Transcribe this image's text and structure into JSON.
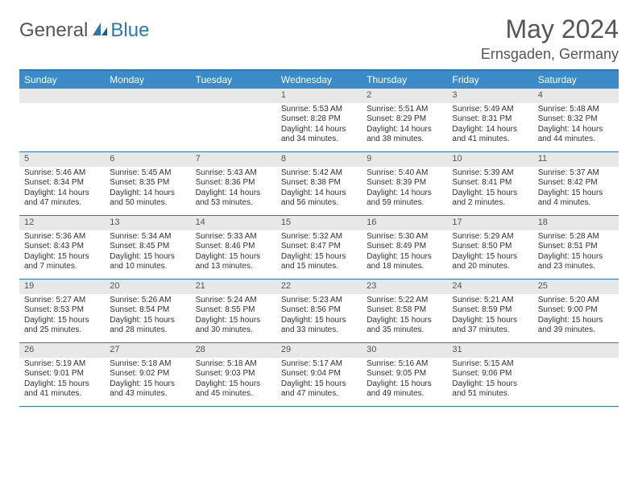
{
  "logo": {
    "general": "General",
    "blue": "Blue"
  },
  "title": "May 2024",
  "location": "Ernsgaden, Germany",
  "colors": {
    "header_bg": "#3b8bc9",
    "border": "#2a77b8",
    "daynum_bg": "#e8e8e8",
    "text": "#333333"
  },
  "weekdays": [
    "Sunday",
    "Monday",
    "Tuesday",
    "Wednesday",
    "Thursday",
    "Friday",
    "Saturday"
  ],
  "weeks": [
    [
      null,
      null,
      null,
      {
        "n": "1",
        "sr": "Sunrise: 5:53 AM",
        "ss": "Sunset: 8:28 PM",
        "dl": "Daylight: 14 hours and 34 minutes."
      },
      {
        "n": "2",
        "sr": "Sunrise: 5:51 AM",
        "ss": "Sunset: 8:29 PM",
        "dl": "Daylight: 14 hours and 38 minutes."
      },
      {
        "n": "3",
        "sr": "Sunrise: 5:49 AM",
        "ss": "Sunset: 8:31 PM",
        "dl": "Daylight: 14 hours and 41 minutes."
      },
      {
        "n": "4",
        "sr": "Sunrise: 5:48 AM",
        "ss": "Sunset: 8:32 PM",
        "dl": "Daylight: 14 hours and 44 minutes."
      }
    ],
    [
      {
        "n": "5",
        "sr": "Sunrise: 5:46 AM",
        "ss": "Sunset: 8:34 PM",
        "dl": "Daylight: 14 hours and 47 minutes."
      },
      {
        "n": "6",
        "sr": "Sunrise: 5:45 AM",
        "ss": "Sunset: 8:35 PM",
        "dl": "Daylight: 14 hours and 50 minutes."
      },
      {
        "n": "7",
        "sr": "Sunrise: 5:43 AM",
        "ss": "Sunset: 8:36 PM",
        "dl": "Daylight: 14 hours and 53 minutes."
      },
      {
        "n": "8",
        "sr": "Sunrise: 5:42 AM",
        "ss": "Sunset: 8:38 PM",
        "dl": "Daylight: 14 hours and 56 minutes."
      },
      {
        "n": "9",
        "sr": "Sunrise: 5:40 AM",
        "ss": "Sunset: 8:39 PM",
        "dl": "Daylight: 14 hours and 59 minutes."
      },
      {
        "n": "10",
        "sr": "Sunrise: 5:39 AM",
        "ss": "Sunset: 8:41 PM",
        "dl": "Daylight: 15 hours and 2 minutes."
      },
      {
        "n": "11",
        "sr": "Sunrise: 5:37 AM",
        "ss": "Sunset: 8:42 PM",
        "dl": "Daylight: 15 hours and 4 minutes."
      }
    ],
    [
      {
        "n": "12",
        "sr": "Sunrise: 5:36 AM",
        "ss": "Sunset: 8:43 PM",
        "dl": "Daylight: 15 hours and 7 minutes."
      },
      {
        "n": "13",
        "sr": "Sunrise: 5:34 AM",
        "ss": "Sunset: 8:45 PM",
        "dl": "Daylight: 15 hours and 10 minutes."
      },
      {
        "n": "14",
        "sr": "Sunrise: 5:33 AM",
        "ss": "Sunset: 8:46 PM",
        "dl": "Daylight: 15 hours and 13 minutes."
      },
      {
        "n": "15",
        "sr": "Sunrise: 5:32 AM",
        "ss": "Sunset: 8:47 PM",
        "dl": "Daylight: 15 hours and 15 minutes."
      },
      {
        "n": "16",
        "sr": "Sunrise: 5:30 AM",
        "ss": "Sunset: 8:49 PM",
        "dl": "Daylight: 15 hours and 18 minutes."
      },
      {
        "n": "17",
        "sr": "Sunrise: 5:29 AM",
        "ss": "Sunset: 8:50 PM",
        "dl": "Daylight: 15 hours and 20 minutes."
      },
      {
        "n": "18",
        "sr": "Sunrise: 5:28 AM",
        "ss": "Sunset: 8:51 PM",
        "dl": "Daylight: 15 hours and 23 minutes."
      }
    ],
    [
      {
        "n": "19",
        "sr": "Sunrise: 5:27 AM",
        "ss": "Sunset: 8:53 PM",
        "dl": "Daylight: 15 hours and 25 minutes."
      },
      {
        "n": "20",
        "sr": "Sunrise: 5:26 AM",
        "ss": "Sunset: 8:54 PM",
        "dl": "Daylight: 15 hours and 28 minutes."
      },
      {
        "n": "21",
        "sr": "Sunrise: 5:24 AM",
        "ss": "Sunset: 8:55 PM",
        "dl": "Daylight: 15 hours and 30 minutes."
      },
      {
        "n": "22",
        "sr": "Sunrise: 5:23 AM",
        "ss": "Sunset: 8:56 PM",
        "dl": "Daylight: 15 hours and 33 minutes."
      },
      {
        "n": "23",
        "sr": "Sunrise: 5:22 AM",
        "ss": "Sunset: 8:58 PM",
        "dl": "Daylight: 15 hours and 35 minutes."
      },
      {
        "n": "24",
        "sr": "Sunrise: 5:21 AM",
        "ss": "Sunset: 8:59 PM",
        "dl": "Daylight: 15 hours and 37 minutes."
      },
      {
        "n": "25",
        "sr": "Sunrise: 5:20 AM",
        "ss": "Sunset: 9:00 PM",
        "dl": "Daylight: 15 hours and 39 minutes."
      }
    ],
    [
      {
        "n": "26",
        "sr": "Sunrise: 5:19 AM",
        "ss": "Sunset: 9:01 PM",
        "dl": "Daylight: 15 hours and 41 minutes."
      },
      {
        "n": "27",
        "sr": "Sunrise: 5:18 AM",
        "ss": "Sunset: 9:02 PM",
        "dl": "Daylight: 15 hours and 43 minutes."
      },
      {
        "n": "28",
        "sr": "Sunrise: 5:18 AM",
        "ss": "Sunset: 9:03 PM",
        "dl": "Daylight: 15 hours and 45 minutes."
      },
      {
        "n": "29",
        "sr": "Sunrise: 5:17 AM",
        "ss": "Sunset: 9:04 PM",
        "dl": "Daylight: 15 hours and 47 minutes."
      },
      {
        "n": "30",
        "sr": "Sunrise: 5:16 AM",
        "ss": "Sunset: 9:05 PM",
        "dl": "Daylight: 15 hours and 49 minutes."
      },
      {
        "n": "31",
        "sr": "Sunrise: 5:15 AM",
        "ss": "Sunset: 9:06 PM",
        "dl": "Daylight: 15 hours and 51 minutes."
      },
      null
    ]
  ]
}
